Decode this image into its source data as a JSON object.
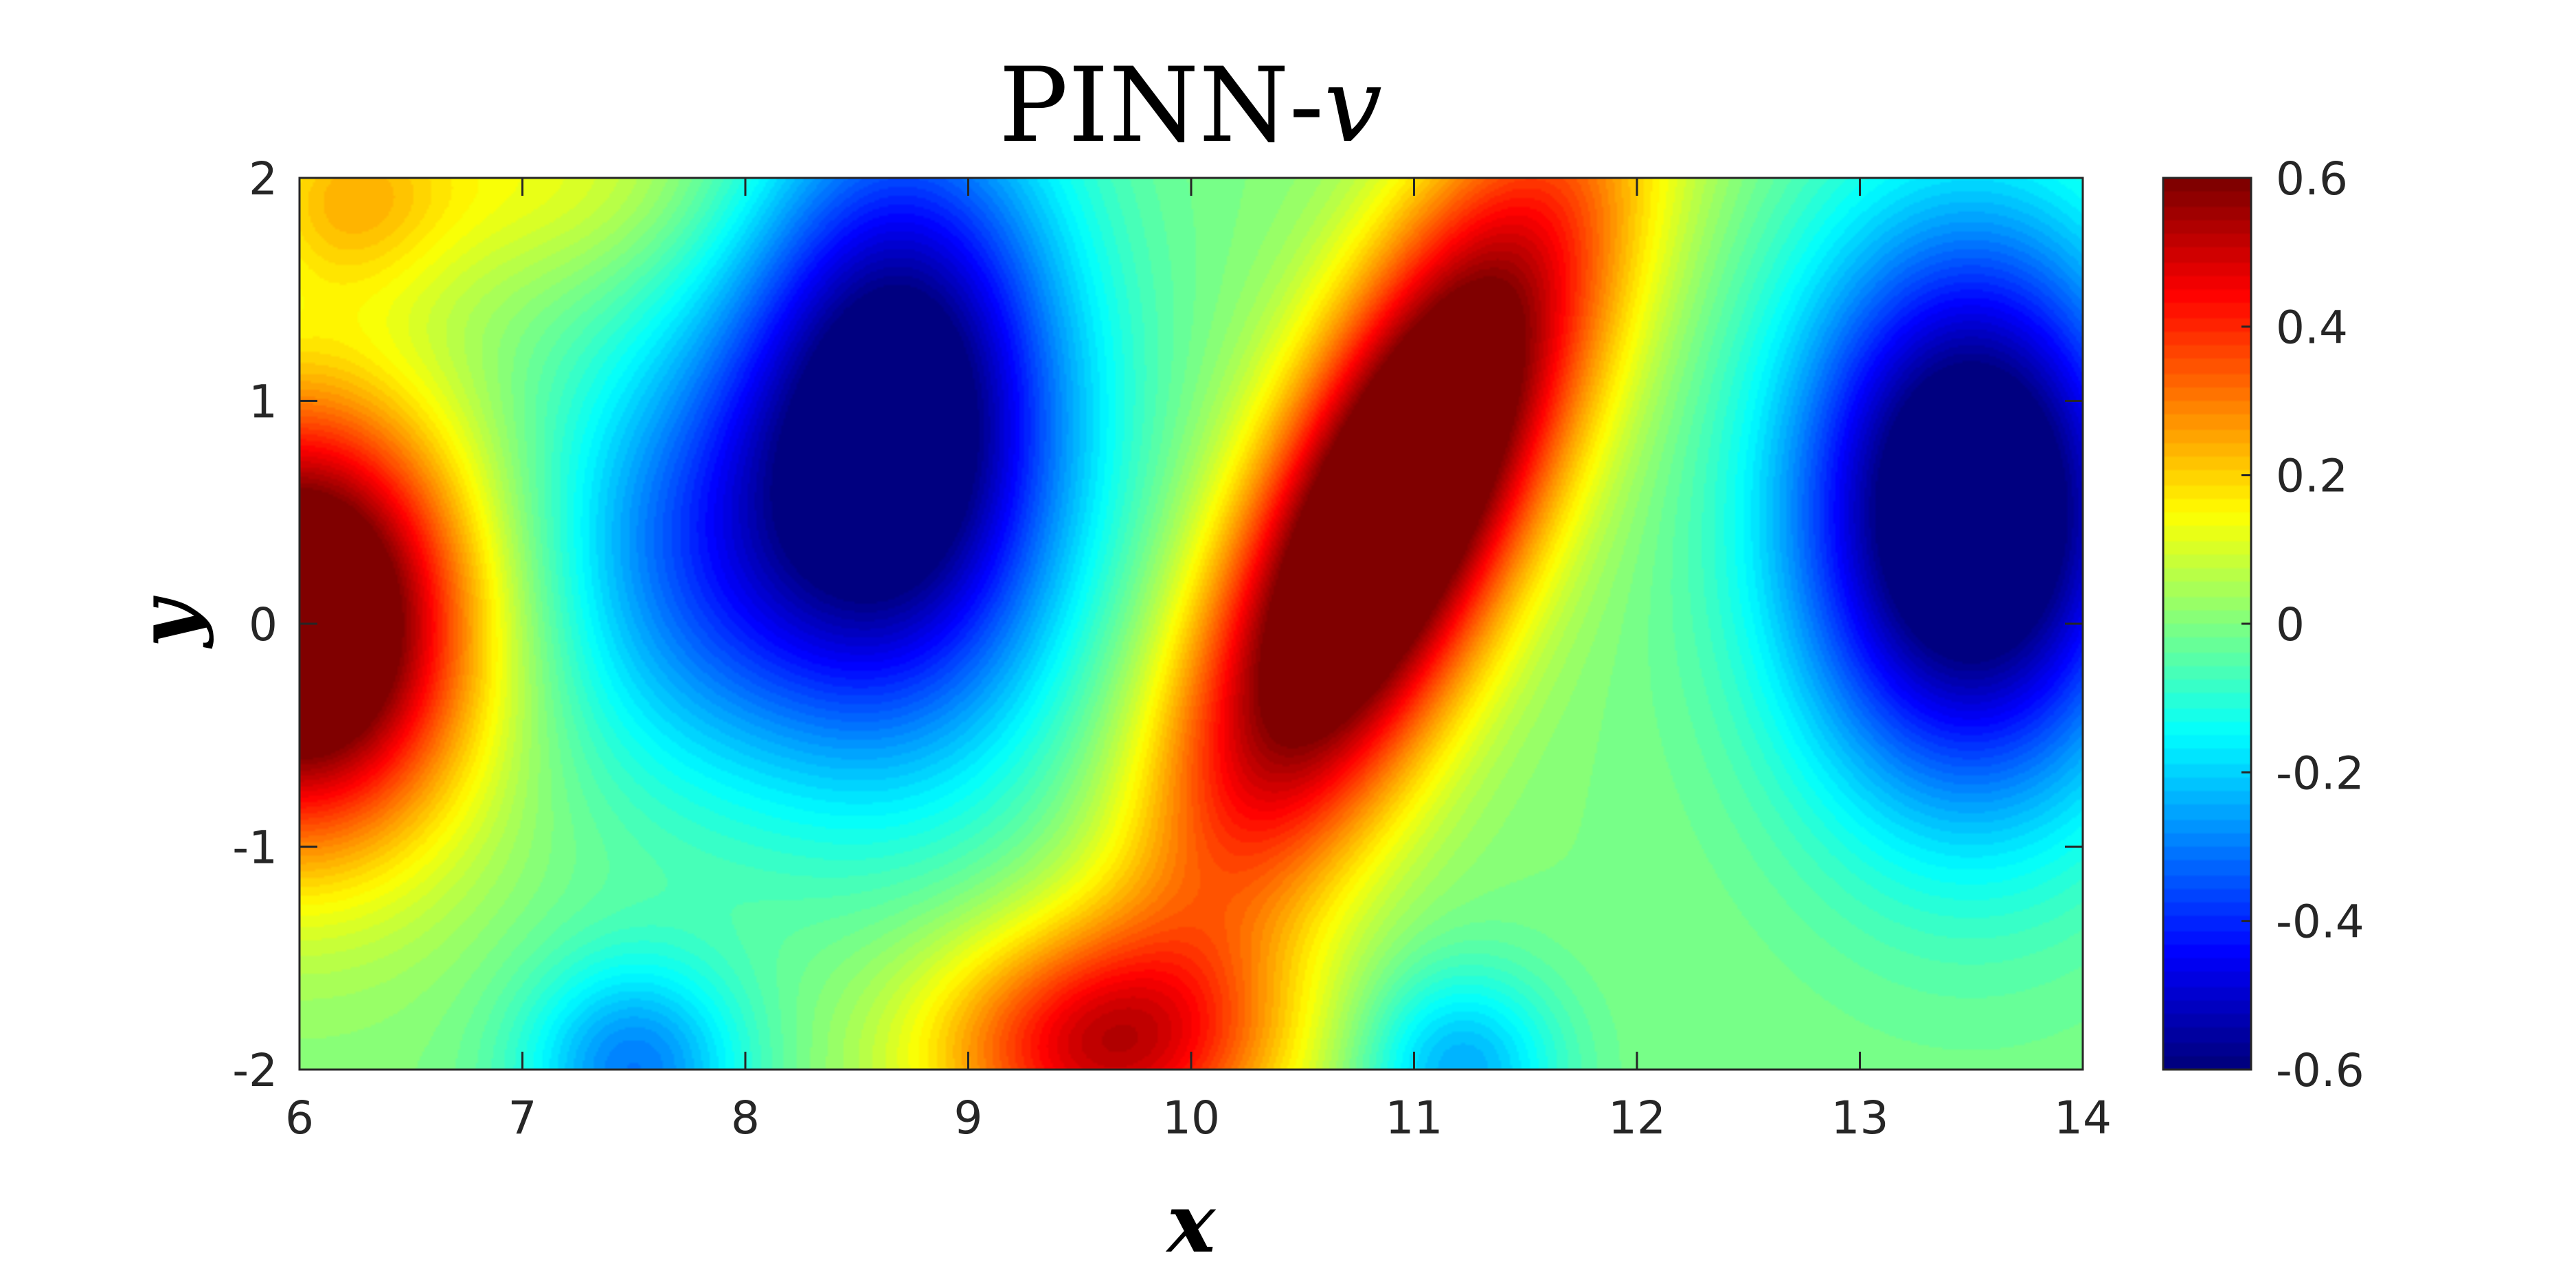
{
  "chart_data": {
    "type": "heatmap",
    "title": "PINN-",
    "title_var": "v",
    "xlabel": "x",
    "ylabel": "y",
    "xlim": [
      6,
      14
    ],
    "ylim": [
      -2,
      2
    ],
    "x_ticks": [
      "6",
      "7",
      "8",
      "9",
      "10",
      "11",
      "12",
      "13",
      "14"
    ],
    "y_ticks": [
      "-2",
      "-1",
      "0",
      "1",
      "2"
    ],
    "colorbar": {
      "colormap": "jet",
      "range": [
        -0.6,
        0.6
      ],
      "ticks": [
        "-0.6",
        "-0.4",
        "-0.2",
        "0",
        "0.2",
        "0.4",
        "0.6"
      ],
      "position": "right"
    },
    "grid": false,
    "field_features": [
      {
        "type": "max",
        "x": 6.0,
        "y": 0.0,
        "value": 0.6
      },
      {
        "type": "min",
        "x": 8.7,
        "y": 0.9,
        "value": -0.45
      },
      {
        "type": "max",
        "x": 10.9,
        "y": 0.5,
        "value": 0.6
      },
      {
        "type": "max",
        "x": 9.5,
        "y": -1.9,
        "value": 0.3
      },
      {
        "type": "min",
        "x": 13.5,
        "y": 0.5,
        "value": -0.5
      },
      {
        "type": "max",
        "x": 6.2,
        "y": 1.9,
        "value": 0.2
      },
      {
        "type": "min",
        "x": 7.5,
        "y": -2.0,
        "value": -0.25
      },
      {
        "type": "min",
        "x": 11.2,
        "y": -2.0,
        "value": -0.22
      }
    ]
  }
}
